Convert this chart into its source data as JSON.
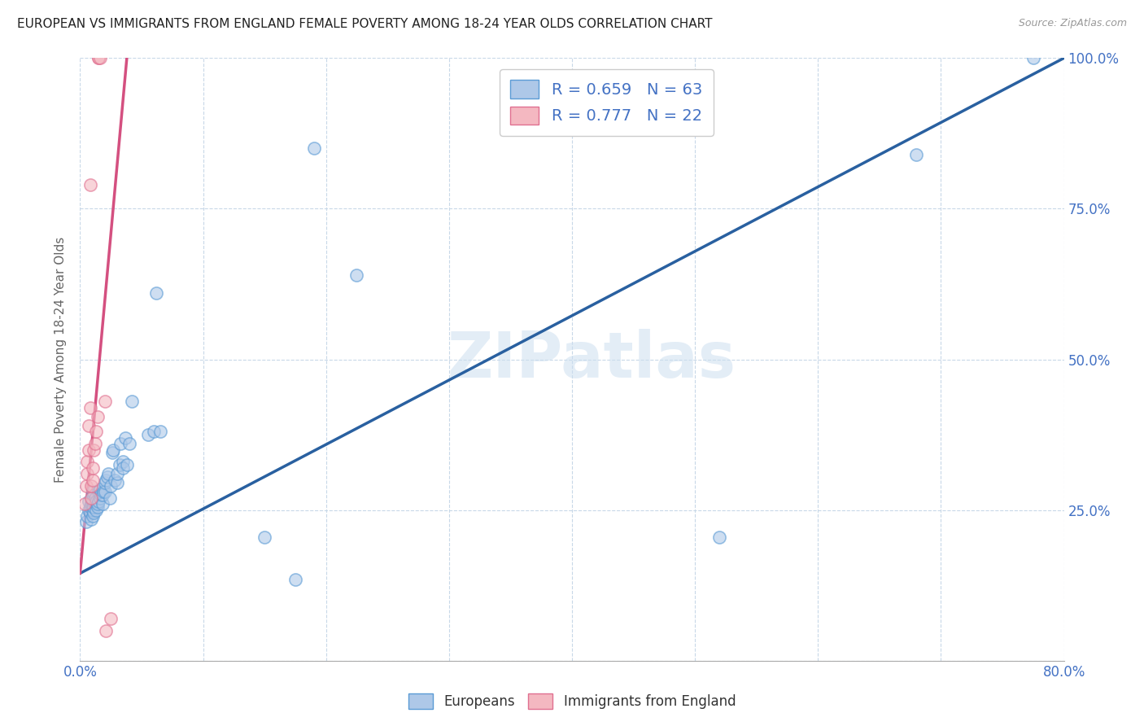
{
  "title": "EUROPEAN VS IMMIGRANTS FROM ENGLAND FEMALE POVERTY AMONG 18-24 YEAR OLDS CORRELATION CHART",
  "source": "Source: ZipAtlas.com",
  "ylabel": "Female Poverty Among 18-24 Year Olds",
  "xlim": [
    0,
    0.8
  ],
  "ylim": [
    0,
    1.0
  ],
  "xticks": [
    0.0,
    0.1,
    0.2,
    0.3,
    0.4,
    0.5,
    0.6,
    0.7,
    0.8
  ],
  "xticklabels": [
    "0.0%",
    "",
    "",
    "",
    "",
    "",
    "",
    "",
    "80.0%"
  ],
  "yticks": [
    0.0,
    0.25,
    0.5,
    0.75,
    1.0
  ],
  "ytick_left_labels": [
    "",
    "",
    "",
    "",
    ""
  ],
  "ytick_right_labels": [
    "",
    "25.0%",
    "50.0%",
    "75.0%",
    "100.0%"
  ],
  "blue_R": 0.659,
  "blue_N": 63,
  "pink_R": 0.777,
  "pink_N": 22,
  "blue_scatter_color": "#aec8e8",
  "blue_edge_color": "#5b9bd5",
  "pink_scatter_color": "#f4b8c1",
  "pink_edge_color": "#e07090",
  "blue_line_color": "#2960a0",
  "pink_line_color": "#d45080",
  "tick_label_color": "#4472c4",
  "watermark": "ZIPatlas",
  "legend_blue_label": "Europeans",
  "legend_pink_label": "Immigrants from England",
  "blue_scatter_x": [
    0.005,
    0.006,
    0.007,
    0.007,
    0.008,
    0.008,
    0.009,
    0.009,
    0.01,
    0.01,
    0.01,
    0.01,
    0.01,
    0.01,
    0.01,
    0.01,
    0.011,
    0.011,
    0.012,
    0.012,
    0.013,
    0.013,
    0.014,
    0.014,
    0.015,
    0.015,
    0.016,
    0.016,
    0.017,
    0.018,
    0.018,
    0.019,
    0.02,
    0.02,
    0.021,
    0.022,
    0.023,
    0.024,
    0.025,
    0.026,
    0.027,
    0.028,
    0.03,
    0.03,
    0.032,
    0.033,
    0.035,
    0.035,
    0.037,
    0.038,
    0.04,
    0.042,
    0.055,
    0.06,
    0.062,
    0.065,
    0.15,
    0.175,
    0.19,
    0.225,
    0.52,
    0.68,
    0.775
  ],
  "blue_scatter_y": [
    0.23,
    0.24,
    0.25,
    0.265,
    0.245,
    0.255,
    0.235,
    0.26,
    0.24,
    0.25,
    0.26,
    0.27,
    0.255,
    0.265,
    0.275,
    0.28,
    0.245,
    0.255,
    0.26,
    0.27,
    0.25,
    0.265,
    0.255,
    0.26,
    0.265,
    0.28,
    0.27,
    0.285,
    0.275,
    0.26,
    0.275,
    0.28,
    0.28,
    0.295,
    0.3,
    0.305,
    0.31,
    0.27,
    0.29,
    0.345,
    0.35,
    0.3,
    0.295,
    0.31,
    0.325,
    0.36,
    0.33,
    0.32,
    0.37,
    0.325,
    0.36,
    0.43,
    0.375,
    0.38,
    0.61,
    0.38,
    0.205,
    0.135,
    0.85,
    0.64,
    0.205,
    0.84,
    1.0
  ],
  "pink_scatter_x": [
    0.004,
    0.005,
    0.006,
    0.006,
    0.007,
    0.007,
    0.008,
    0.008,
    0.009,
    0.009,
    0.01,
    0.01,
    0.011,
    0.012,
    0.013,
    0.014,
    0.015,
    0.015,
    0.016,
    0.02,
    0.021,
    0.025
  ],
  "pink_scatter_y": [
    0.26,
    0.29,
    0.31,
    0.33,
    0.35,
    0.39,
    0.42,
    0.79,
    0.27,
    0.29,
    0.3,
    0.32,
    0.35,
    0.36,
    0.38,
    0.405,
    1.0,
    1.0,
    1.0,
    0.43,
    0.05,
    0.07
  ],
  "blue_line_x": [
    0.0,
    0.8
  ],
  "blue_line_y": [
    0.145,
    1.0
  ],
  "pink_line_x": [
    0.0,
    0.038
  ],
  "pink_line_y": [
    0.145,
    1.0
  ]
}
